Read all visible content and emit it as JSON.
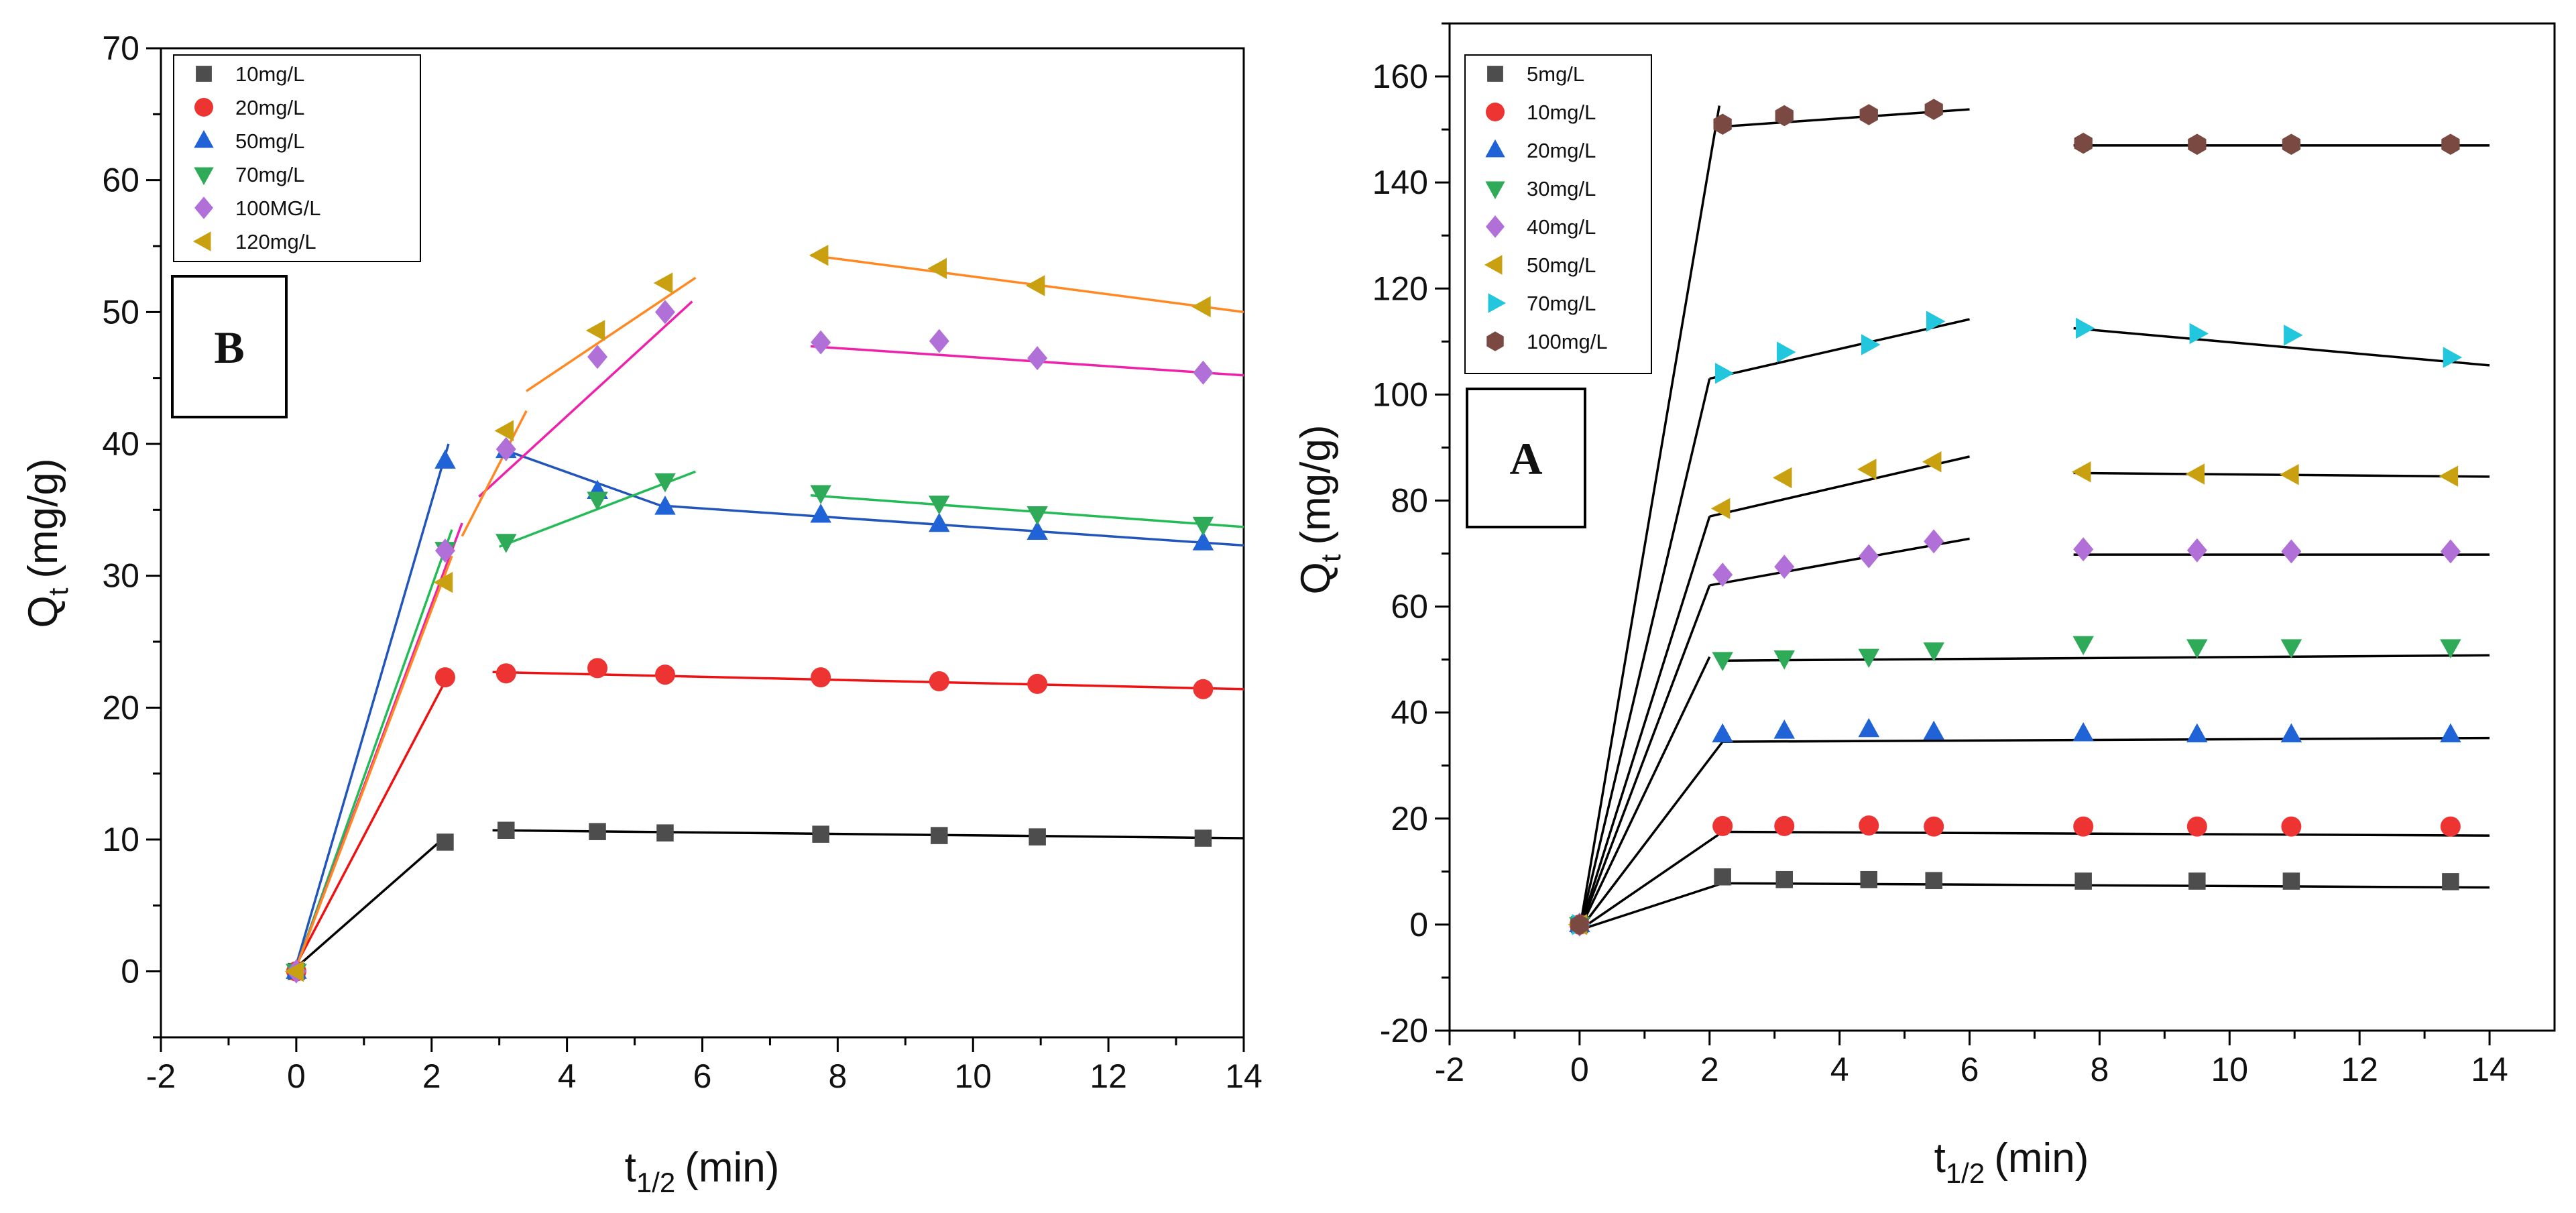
{
  "chart_data": [
    {
      "type": "scatter",
      "panel_label": "B",
      "xlabel": "t1/2 (min)",
      "xlabel_main": "t",
      "xlabel_sub": "1/2",
      "xlabel_rest": "(min)",
      "ylabel": "Qt (mg/g)",
      "ylabel_main": "Q",
      "ylabel_sub": "t",
      "ylabel_rest": "(mg/g)",
      "xlim": [
        -2,
        14
      ],
      "ylim": [
        -5,
        70
      ],
      "xticks": [
        -2,
        0,
        2,
        4,
        6,
        8,
        10,
        12,
        14
      ],
      "yticks": [
        0,
        10,
        20,
        30,
        40,
        50,
        60,
        70
      ],
      "legend_position": "top-left",
      "series": [
        {
          "name": "10mg/L",
          "marker": "square",
          "color": "#4d4d4d",
          "x": [
            0,
            2.2,
            3.1,
            4.45,
            5.45,
            7.75,
            9.5,
            10.95,
            13.4
          ],
          "y": [
            0,
            9.8,
            10.7,
            10.6,
            10.5,
            10.4,
            10.3,
            10.2,
            10.1
          ],
          "fits": [
            {
              "color": "#000000",
              "from": [
                0,
                0.3
              ],
              "to": [
                2.2,
                10.2
              ]
            },
            {
              "color": "#000000",
              "from": [
                2.9,
                10.7
              ],
              "to": [
                14,
                10.1
              ]
            }
          ]
        },
        {
          "name": "20mg/L",
          "marker": "circle",
          "color": "#ee3333",
          "x": [
            0,
            2.2,
            3.1,
            4.45,
            5.45,
            7.75,
            9.5,
            10.95,
            13.4
          ],
          "y": [
            0,
            22.3,
            22.6,
            23.0,
            22.5,
            22.3,
            22.0,
            21.8,
            21.4
          ],
          "fits": [
            {
              "color": "#ee1111",
              "from": [
                0,
                0.5
              ],
              "to": [
                2.2,
                22.0
              ]
            },
            {
              "color": "#ee1111",
              "from": [
                2.9,
                22.7
              ],
              "to": [
                14,
                21.4
              ]
            }
          ]
        },
        {
          "name": "50mg/L",
          "marker": "triangle-up",
          "color": "#1f63d6",
          "x": [
            0,
            2.2,
            3.1,
            4.45,
            5.45,
            7.75,
            9.5,
            10.95,
            13.4
          ],
          "y": [
            0,
            38.7,
            39.5,
            36.4,
            35.2,
            34.6,
            33.9,
            33.3,
            32.5
          ],
          "fits": [
            {
              "color": "#2255bb",
              "from": [
                0,
                0.5
              ],
              "to": [
                2.25,
                40.0
              ]
            },
            {
              "color": "#2255bb",
              "from": [
                3.1,
                39.5
              ],
              "to": [
                5.45,
                35.2
              ]
            },
            {
              "color": "#2255bb",
              "from": [
                5.45,
                35.3
              ],
              "to": [
                14,
                32.3
              ]
            }
          ]
        },
        {
          "name": "70mg/L",
          "marker": "triangle-down",
          "color": "#2eaa58",
          "x": [
            0,
            2.2,
            3.1,
            4.45,
            5.45,
            7.75,
            9.5,
            10.95,
            13.4
          ],
          "y": [
            0,
            32.0,
            32.6,
            35.8,
            37.2,
            36.3,
            35.5,
            34.7,
            33.9
          ],
          "fits": [
            {
              "color": "#22bb55",
              "from": [
                0,
                0.3
              ],
              "to": [
                2.3,
                33.5
              ]
            },
            {
              "color": "#22bb55",
              "from": [
                3.0,
                32.2
              ],
              "to": [
                5.9,
                37.9
              ]
            },
            {
              "color": "#22bb55",
              "from": [
                7.6,
                36.1
              ],
              "to": [
                14,
                33.7
              ]
            }
          ]
        },
        {
          "name": "100MG/L",
          "marker": "diamond",
          "color": "#b070d8",
          "x": [
            0,
            2.2,
            3.1,
            4.45,
            5.45,
            7.75,
            9.5,
            10.95,
            13.4
          ],
          "y": [
            0,
            31.9,
            39.6,
            46.6,
            50.0,
            47.7,
            47.8,
            46.5,
            45.4
          ],
          "fits": [
            {
              "color": "#ee22aa",
              "from": [
                0,
                0.3
              ],
              "to": [
                2.45,
                34.0
              ]
            },
            {
              "color": "#ee22aa",
              "from": [
                2.7,
                36.0
              ],
              "to": [
                5.85,
                50.8
              ]
            },
            {
              "color": "#ee22aa",
              "from": [
                7.6,
                47.4
              ],
              "to": [
                14,
                45.2
              ]
            }
          ]
        },
        {
          "name": "120mg/L",
          "marker": "triangle-left",
          "color": "#c9a010",
          "x": [
            0,
            2.2,
            3.1,
            4.45,
            5.45,
            7.75,
            9.5,
            10.95,
            13.4
          ],
          "y": [
            0,
            29.5,
            41.0,
            48.6,
            52.2,
            54.3,
            53.3,
            52.0,
            50.4
          ],
          "fits": [
            {
              "color": "#ff8822",
              "from": [
                0,
                0.3
              ],
              "to": [
                2.3,
                31.5
              ]
            },
            {
              "color": "#ff8822",
              "from": [
                2.45,
                33.0
              ],
              "to": [
                3.4,
                42.5
              ]
            },
            {
              "color": "#ff8822",
              "from": [
                3.4,
                44.0
              ],
              "to": [
                5.9,
                52.6
              ]
            },
            {
              "color": "#ff8822",
              "from": [
                7.6,
                54.3
              ],
              "to": [
                14,
                50.0
              ]
            }
          ]
        }
      ]
    },
    {
      "type": "scatter",
      "panel_label": "A",
      "xlabel": "t1/2 (min)",
      "xlabel_main": "t",
      "xlabel_sub": "1/2",
      "xlabel_rest": "(min)",
      "ylabel": "Qt (mg/g)",
      "ylabel_main": "Q",
      "ylabel_sub": "t",
      "ylabel_rest": "(mg/g)",
      "xlim": [
        -2,
        15
      ],
      "ylim": [
        -20,
        170
      ],
      "xticks": [
        -2,
        0,
        2,
        4,
        6,
        8,
        10,
        12,
        14
      ],
      "yticks": [
        -20,
        0,
        20,
        40,
        60,
        80,
        100,
        120,
        140,
        160
      ],
      "legend_position": "top-left",
      "series": [
        {
          "name": "5mg/L",
          "marker": "square",
          "color": "#4d4d4d",
          "x": [
            0,
            2.2,
            3.15,
            4.45,
            5.45,
            7.75,
            9.5,
            10.95,
            13.4
          ],
          "y": [
            0,
            9.0,
            8.5,
            8.5,
            8.3,
            8.2,
            8.2,
            8.2,
            8.1
          ],
          "fits": [
            {
              "color": "#000000",
              "from": [
                0,
                -1
              ],
              "to": [
                2.2,
                7.8
              ]
            },
            {
              "color": "#000000",
              "from": [
                2.2,
                7.8
              ],
              "to": [
                14,
                7.0
              ]
            }
          ]
        },
        {
          "name": "10mg/L",
          "marker": "circle",
          "color": "#ee3333",
          "x": [
            0,
            2.2,
            3.15,
            4.45,
            5.45,
            7.75,
            9.5,
            10.95,
            13.4
          ],
          "y": [
            0,
            18.6,
            18.6,
            18.7,
            18.5,
            18.5,
            18.5,
            18.5,
            18.5
          ],
          "fits": [
            {
              "color": "#000000",
              "from": [
                0,
                -1
              ],
              "to": [
                2.2,
                17.5
              ]
            },
            {
              "color": "#000000",
              "from": [
                2.2,
                17.5
              ],
              "to": [
                14,
                16.8
              ]
            }
          ]
        },
        {
          "name": "20mg/L",
          "marker": "triangle-up",
          "color": "#1f63d6",
          "x": [
            0,
            2.2,
            3.15,
            4.45,
            5.45,
            7.75,
            9.5,
            10.95,
            13.4
          ],
          "y": [
            0,
            35.8,
            36.5,
            36.8,
            36.3,
            36.0,
            35.8,
            35.8,
            35.8
          ],
          "fits": [
            {
              "color": "#000000",
              "from": [
                0,
                -1
              ],
              "to": [
                2.2,
                34.5
              ]
            },
            {
              "color": "#000000",
              "from": [
                2.2,
                34.5
              ],
              "to": [
                14,
                35.2
              ]
            }
          ]
        },
        {
          "name": "30mg/L",
          "marker": "triangle-down",
          "color": "#2eaa58",
          "x": [
            0,
            2.2,
            3.15,
            4.45,
            5.45,
            7.75,
            9.5,
            10.95,
            13.4
          ],
          "y": [
            0,
            50.0,
            50.3,
            50.6,
            51.8,
            53.0,
            52.4,
            52.4,
            52.4
          ],
          "fits": [
            {
              "color": "#000000",
              "from": [
                0,
                -1
              ],
              "to": [
                2.0,
                50.5
              ]
            },
            {
              "color": "#000000",
              "from": [
                2.2,
                49.8
              ],
              "to": [
                14,
                50.8
              ]
            }
          ]
        },
        {
          "name": "40mg/L",
          "marker": "diamond",
          "color": "#b070d8",
          "x": [
            0,
            2.2,
            3.15,
            4.45,
            5.45,
            7.75,
            9.5,
            10.95,
            13.4
          ],
          "y": [
            0,
            66.0,
            67.5,
            69.5,
            72.3,
            70.8,
            70.6,
            70.4,
            70.4
          ],
          "fits": [
            {
              "color": "#000000",
              "from": [
                0,
                -1
              ],
              "to": [
                2.0,
                64.0
              ]
            },
            {
              "color": "#000000",
              "from": [
                2.0,
                64.0
              ],
              "to": [
                6.0,
                72.8
              ]
            },
            {
              "color": "#000000",
              "from": [
                7.6,
                69.8
              ],
              "to": [
                14,
                69.8
              ]
            }
          ]
        },
        {
          "name": "50mg/L",
          "marker": "triangle-left",
          "color": "#c9a010",
          "x": [
            0,
            2.2,
            3.15,
            4.45,
            5.45,
            7.75,
            9.5,
            10.95,
            13.4
          ],
          "y": [
            0,
            78.5,
            84.3,
            85.9,
            87.3,
            85.4,
            85.0,
            84.9,
            84.6
          ],
          "fits": [
            {
              "color": "#000000",
              "from": [
                0,
                -1
              ],
              "to": [
                2.0,
                77.0
              ]
            },
            {
              "color": "#000000",
              "from": [
                2.0,
                77.0
              ],
              "to": [
                6.0,
                88.3
              ]
            },
            {
              "color": "#000000",
              "from": [
                7.6,
                85.2
              ],
              "to": [
                14,
                84.5
              ]
            }
          ]
        },
        {
          "name": "70mg/L",
          "marker": "triangle-right",
          "color": "#22c6dd",
          "x": [
            0,
            2.2,
            3.15,
            4.45,
            5.45,
            7.75,
            9.5,
            10.95,
            13.4
          ],
          "y": [
            0,
            104.0,
            108.0,
            109.4,
            113.8,
            112.5,
            111.5,
            111.2,
            107.0
          ],
          "fits": [
            {
              "color": "#000000",
              "from": [
                0,
                -1
              ],
              "to": [
                2.0,
                103.0
              ]
            },
            {
              "color": "#000000",
              "from": [
                2.0,
                103.0
              ],
              "to": [
                6.0,
                114.2
              ]
            },
            {
              "color": "#000000",
              "from": [
                7.6,
                112.5
              ],
              "to": [
                14,
                105.5
              ]
            }
          ]
        },
        {
          "name": "100mg/L",
          "marker": "hexagon",
          "color": "#7a4a42",
          "x": [
            0,
            2.2,
            3.15,
            4.45,
            5.45,
            7.75,
            9.5,
            10.95,
            13.4
          ],
          "y": [
            0,
            151.0,
            152.6,
            152.8,
            153.8,
            147.4,
            147.2,
            147.2,
            147.2
          ],
          "fits": [
            {
              "color": "#000000",
              "from": [
                0,
                -1
              ],
              "to": [
                2.15,
                154.5
              ]
            },
            {
              "color": "#000000",
              "from": [
                2.15,
                150.5
              ],
              "to": [
                6.0,
                153.8
              ]
            },
            {
              "color": "#000000",
              "from": [
                7.6,
                147.0
              ],
              "to": [
                14,
                147.0
              ]
            }
          ]
        }
      ]
    }
  ]
}
